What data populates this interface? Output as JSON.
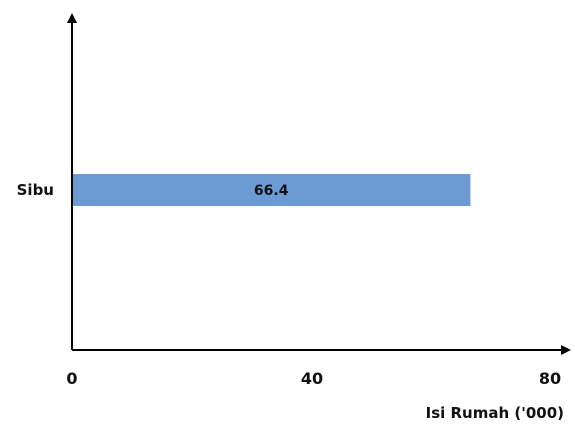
{
  "chart_data": {
    "type": "bar",
    "orientation": "horizontal",
    "categories": [
      "Sibu"
    ],
    "values": [
      66.4
    ],
    "data_labels": [
      "66.4"
    ],
    "xlabel": "Isi Rumah ('000)",
    "ylabel": "",
    "xlim": [
      0,
      80
    ],
    "x_ticks": [
      0,
      40,
      80
    ],
    "x_tick_labels": [
      "0",
      "40",
      "80"
    ],
    "grid": false,
    "legend": "none",
    "bar_color": "#6b9bd2"
  }
}
